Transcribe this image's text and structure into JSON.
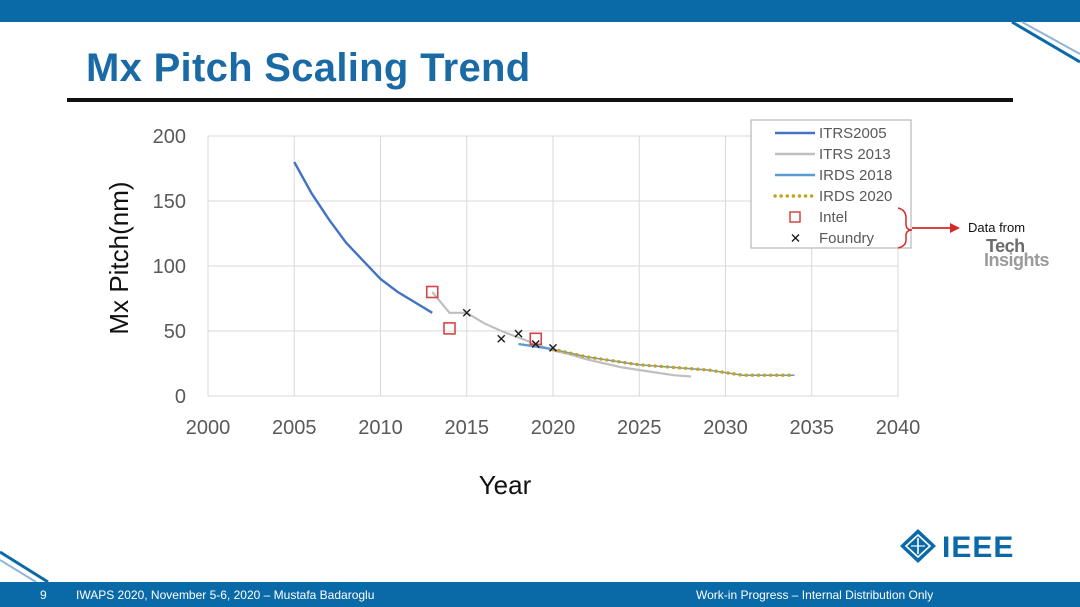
{
  "slide": {
    "title": "Mx Pitch Scaling Trend",
    "page_number": "9",
    "footer_left": "IWAPS 2020, November 5-6, 2020 – Mustafa Badaroglu",
    "footer_right": "Work-in Progress – Internal Distribution Only",
    "logo_text": "IEEE",
    "callout_text": "Data from",
    "techinsights_line1": "Tech",
    "techinsights_line2": "Insights",
    "colors": {
      "brand_blue": "#0a6aa8",
      "title_blue": "#1a6aa6",
      "callout_arrow": "#d42a2a"
    }
  },
  "chart_data": {
    "type": "line",
    "xlabel": "Year",
    "ylabel": "Mx Pitch(nm)",
    "xlim": [
      2000,
      2040
    ],
    "ylim": [
      0,
      200
    ],
    "xticks": [
      "2000",
      "2005",
      "2010",
      "2015",
      "2020",
      "2025",
      "2030",
      "2035",
      "2040"
    ],
    "yticks": [
      "0",
      "50",
      "100",
      "150",
      "200"
    ],
    "grid": "horizontal and vertical",
    "legend_position": "top-right",
    "series": [
      {
        "name": "ITRS2005",
        "kind": "line",
        "color": "#4472c4",
        "x": [
          2005,
          2006,
          2007,
          2008,
          2009,
          2010,
          2011,
          2012,
          2013
        ],
        "y": [
          180,
          156,
          136,
          118,
          104,
          90,
          80,
          72,
          64
        ]
      },
      {
        "name": "ITRS 2013",
        "kind": "line",
        "color": "#bfbfbf",
        "x": [
          2013,
          2014,
          2015,
          2016,
          2017,
          2018,
          2019,
          2020,
          2021,
          2022,
          2023,
          2024,
          2025,
          2026,
          2027,
          2028
        ],
        "y": [
          80,
          64,
          64,
          56,
          50,
          45,
          40,
          35,
          32,
          28,
          25,
          22,
          20,
          18,
          16,
          15
        ]
      },
      {
        "name": "IRDS 2018",
        "kind": "line",
        "color": "#5b9bd5",
        "x": [
          2018,
          2019,
          2020
        ],
        "y": [
          40,
          38,
          36
        ]
      },
      {
        "name": "IRDS 2020",
        "kind": "dotted",
        "color": "#c9a11b",
        "x": [
          2020,
          2021,
          2022,
          2023,
          2024,
          2025,
          2026,
          2027,
          2028,
          2029,
          2030,
          2031,
          2032,
          2033,
          2034
        ],
        "y": [
          36,
          33,
          30,
          28,
          26,
          24,
          23,
          22,
          21,
          20,
          18,
          16,
          16,
          16,
          16
        ]
      },
      {
        "name": "Intel",
        "kind": "marker-square",
        "color": "#d64545",
        "x": [
          2013,
          2014,
          2019
        ],
        "y": [
          80,
          52,
          44
        ]
      },
      {
        "name": "Foundry",
        "kind": "marker-x",
        "color": "#1a1a1a",
        "x": [
          2015,
          2017,
          2018,
          2019,
          2020
        ],
        "y": [
          64,
          44,
          48,
          40,
          37
        ]
      }
    ]
  }
}
